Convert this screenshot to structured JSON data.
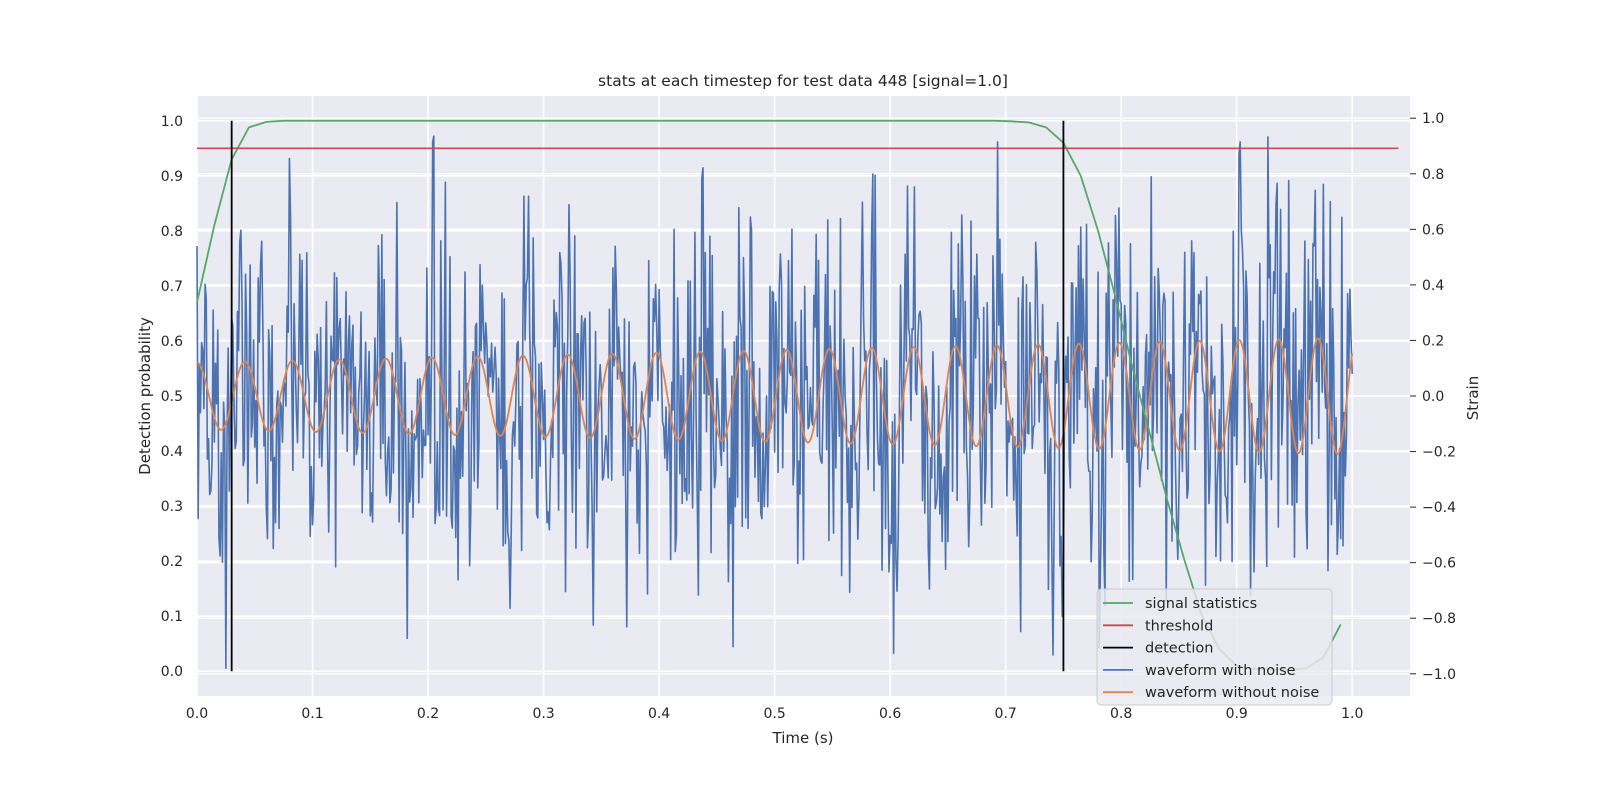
{
  "chart_data": {
    "type": "line",
    "title": "stats at each timestep for test data 448 [signal=1.0]",
    "xlabel": "Time (s)",
    "ylabel_left": "Detection probability",
    "ylabel_right": "Strain",
    "xlim": [
      0.0,
      1.05
    ],
    "ylim_left": [
      -0.045,
      1.045
    ],
    "ylim_right": [
      -1.08,
      1.08
    ],
    "x_ticks": [
      "0.0",
      "0.1",
      "0.2",
      "0.3",
      "0.4",
      "0.5",
      "0.6",
      "0.7",
      "0.8",
      "0.9",
      "1.0"
    ],
    "y_left_ticks": [
      "0.0",
      "0.1",
      "0.2",
      "0.3",
      "0.4",
      "0.5",
      "0.6",
      "0.7",
      "0.8",
      "0.9",
      "1.0"
    ],
    "y_right_ticks": [
      "−1.0",
      "−0.8",
      "−0.6",
      "−0.4",
      "−0.2",
      "0.0",
      "0.2",
      "0.4",
      "0.6",
      "0.8",
      "1.0"
    ],
    "grid": true,
    "legend_position": "lower-right",
    "series": [
      {
        "name": "signal statistics",
        "axis": "left",
        "color": "#55a868",
        "x": [
          0.0,
          0.015,
          0.03,
          0.045,
          0.06,
          0.075,
          0.1,
          0.2,
          0.3,
          0.4,
          0.5,
          0.6,
          0.69,
          0.705,
          0.72,
          0.735,
          0.75,
          0.765,
          0.78,
          0.795,
          0.81,
          0.825,
          0.84,
          0.855,
          0.87,
          0.885,
          0.9,
          0.915,
          0.93,
          0.945,
          0.96,
          0.975,
          0.99
        ],
        "y": [
          0.67,
          0.81,
          0.93,
          0.988,
          0.998,
          1.0,
          1.0,
          1.0,
          1.0,
          1.0,
          1.0,
          1.0,
          1.0,
          0.999,
          0.997,
          0.988,
          0.96,
          0.9,
          0.8,
          0.68,
          0.55,
          0.43,
          0.31,
          0.2,
          0.1,
          0.04,
          0.01,
          0.004,
          0.003,
          0.003,
          0.005,
          0.025,
          0.085
        ]
      },
      {
        "name": "threshold",
        "axis": "left",
        "color": "#c44e52",
        "x": [
          0.0,
          1.04
        ],
        "y": [
          0.95,
          0.95
        ]
      },
      {
        "name": "detection",
        "axis": "left",
        "color": "#000000",
        "x": [
          0.03,
          0.75
        ],
        "y_range": [
          0.0,
          1.0
        ]
      },
      {
        "name": "waveform with noise",
        "axis": "right",
        "color": "#4c72b0",
        "x_range": [
          0.0,
          1.0
        ],
        "n_samples": 1000,
        "y_min": -0.98,
        "y_max": 1.0,
        "std": 0.33
      },
      {
        "name": "waveform without noise",
        "axis": "right",
        "color": "#dd8452",
        "x_range": [
          0.0,
          1.0
        ],
        "cycles": 24,
        "amplitude_start": 0.12,
        "amplitude_end": 0.21
      }
    ]
  }
}
